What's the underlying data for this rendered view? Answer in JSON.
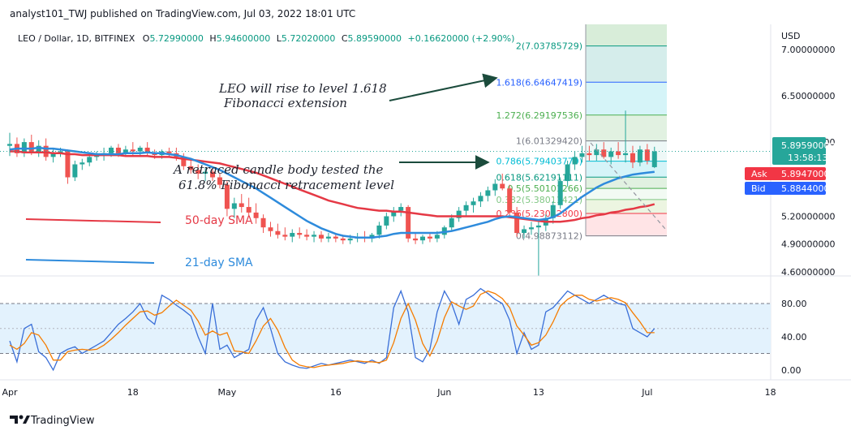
{
  "header": {
    "published": "analyst101_TWJ published on TradingView.com, Jul 03, 2022 18:01 UTC",
    "symbol": "LEO / Dollar, 1D, BITFINEX",
    "o_label": "O",
    "o": "5.72990000",
    "h_label": "H",
    "h": "5.94600000",
    "l_label": "L",
    "l": "5.72020000",
    "c_label": "C",
    "c": "5.89590000",
    "change": "+0.16620000 (+2.90%)"
  },
  "price_axis": {
    "currency": "USD",
    "ticks": [
      "7.00000000",
      "6.50000000",
      "6.00000000",
      "5.20000000",
      "4.90000000",
      "4.60000000"
    ],
    "tick_values": [
      7.0,
      6.5,
      6.0,
      5.2,
      4.9,
      4.6
    ],
    "last_price": "5.89590000",
    "countdown": "13:58:13",
    "ask_label": "Ask",
    "ask": "5.89470000",
    "bid_label": "Bid",
    "bid": "5.88440000"
  },
  "osc_axis": {
    "ticks": [
      "80.00",
      "40.00",
      "0.00"
    ],
    "tick_values": [
      80,
      40,
      0
    ]
  },
  "time_axis": {
    "labels": [
      "Apr",
      "18",
      "May",
      "16",
      "Jun",
      "13",
      "Jul",
      "18"
    ],
    "day_index": [
      0,
      17,
      30,
      45,
      60,
      73,
      88,
      105
    ]
  },
  "fib_levels": [
    {
      "label": "2(7.03785729)",
      "value": 7.03785729,
      "color": "#089981"
    },
    {
      "label": "1.618(6.64647419)",
      "value": 6.64647419,
      "color": "#2962ff"
    },
    {
      "label": "1.272(6.29197536)",
      "value": 6.29197536,
      "color": "#4caf50"
    },
    {
      "label": "1(6.01329420)",
      "value": 6.0132942,
      "color": "#787b86"
    },
    {
      "label": "0.786(5.79403779)",
      "value": 5.79403779,
      "color": "#00bcd4"
    },
    {
      "label": "0.618(5.62191111)",
      "value": 5.62191111,
      "color": "#089981"
    },
    {
      "label": "0.5(5.50101266)",
      "value": 5.50101266,
      "color": "#4caf50"
    },
    {
      "label": "0.382(5.38011421)",
      "value": 5.38011421,
      "color": "#81c784"
    },
    {
      "label": "0.236(5.23052800)",
      "value": 5.230528,
      "color": "#f23645"
    },
    {
      "label": "0(4.98873112)",
      "value": 4.98873112,
      "color": "#787b86"
    }
  ],
  "annotations": {
    "fib_ext_line1": "LEO will rise to level 1.618",
    "fib_ext_line2": "Fibonacci extension",
    "retrace_line1": "A retraced candle body tested the",
    "retrace_line2": "61.8% Fibonacci retracement level",
    "sma50": "50-day SMA",
    "sma21": "21-day SMA"
  },
  "colors": {
    "up": "#26a69a",
    "down": "#ef5350",
    "sma50": "#e53945",
    "sma21": "#2e8bdc",
    "stoch_k": "#3a6fd8",
    "stoch_d": "#f57c00",
    "osc_band": "#e3f2fd"
  },
  "brand": {
    "name": "TradingView"
  },
  "chart_data": {
    "type": "candlestick",
    "title": "LEO / Dollar, 1D, BITFINEX",
    "x_start": "2022-04-01",
    "ylabel": "USD",
    "ylim": [
      4.45,
      7.3
    ],
    "candles": [
      [
        5.96,
        6.1,
        5.85,
        5.98
      ],
      [
        5.98,
        6.05,
        5.84,
        5.88
      ],
      [
        5.88,
        6.04,
        5.84,
        6.0
      ],
      [
        6.0,
        6.08,
        5.86,
        5.9
      ],
      [
        5.9,
        6.02,
        5.84,
        5.96
      ],
      [
        5.96,
        6.04,
        5.8,
        5.84
      ],
      [
        5.84,
        5.92,
        5.78,
        5.88
      ],
      [
        5.88,
        5.94,
        5.84,
        5.9
      ],
      [
        5.9,
        5.92,
        5.55,
        5.62
      ],
      [
        5.62,
        5.8,
        5.58,
        5.76
      ],
      [
        5.76,
        5.82,
        5.7,
        5.78
      ],
      [
        5.78,
        5.86,
        5.74,
        5.84
      ],
      [
        5.84,
        5.9,
        5.8,
        5.86
      ],
      [
        5.86,
        5.94,
        5.8,
        5.88
      ],
      [
        5.88,
        5.96,
        5.84,
        5.94
      ],
      [
        5.94,
        5.98,
        5.84,
        5.88
      ],
      [
        5.88,
        5.96,
        5.84,
        5.92
      ],
      [
        5.92,
        6.0,
        5.86,
        5.9
      ],
      [
        5.9,
        5.96,
        5.85,
        5.94
      ],
      [
        5.94,
        6.0,
        5.86,
        5.88
      ],
      [
        5.88,
        5.92,
        5.82,
        5.86
      ],
      [
        5.86,
        5.92,
        5.82,
        5.9
      ],
      [
        5.9,
        5.94,
        5.84,
        5.88
      ],
      [
        5.88,
        5.94,
        5.8,
        5.84
      ],
      [
        5.84,
        5.88,
        5.7,
        5.74
      ],
      [
        5.74,
        5.8,
        5.66,
        5.7
      ],
      [
        5.7,
        5.76,
        5.6,
        5.66
      ],
      [
        5.66,
        5.72,
        5.58,
        5.68
      ],
      [
        5.68,
        5.72,
        5.58,
        5.62
      ],
      [
        5.62,
        5.66,
        5.5,
        5.54
      ],
      [
        5.54,
        5.58,
        5.2,
        5.28
      ],
      [
        5.28,
        5.4,
        5.18,
        5.34
      ],
      [
        5.34,
        5.44,
        5.24,
        5.3
      ],
      [
        5.3,
        5.4,
        5.2,
        5.24
      ],
      [
        5.24,
        5.34,
        5.12,
        5.18
      ],
      [
        5.18,
        5.22,
        5.02,
        5.08
      ],
      [
        5.08,
        5.14,
        4.98,
        5.04
      ],
      [
        5.04,
        5.12,
        4.96,
        5.0
      ],
      [
        5.0,
        5.08,
        4.94,
        4.98
      ],
      [
        4.98,
        5.06,
        4.92,
        5.02
      ],
      [
        5.02,
        5.08,
        4.96,
        5.0
      ],
      [
        5.0,
        5.06,
        4.94,
        4.98
      ],
      [
        4.98,
        5.04,
        4.92,
        5.0
      ],
      [
        5.0,
        5.04,
        4.92,
        4.96
      ],
      [
        4.96,
        5.02,
        4.92,
        4.98
      ],
      [
        4.98,
        5.02,
        4.92,
        4.96
      ],
      [
        4.96,
        5.0,
        4.9,
        4.94
      ],
      [
        4.94,
        5.0,
        4.9,
        4.96
      ],
      [
        4.96,
        5.02,
        4.92,
        4.98
      ],
      [
        4.98,
        5.04,
        4.92,
        4.96
      ],
      [
        4.96,
        5.02,
        4.92,
        5.0
      ],
      [
        5.0,
        5.14,
        4.96,
        5.1
      ],
      [
        5.1,
        5.24,
        5.06,
        5.2
      ],
      [
        5.2,
        5.3,
        5.14,
        5.26
      ],
      [
        5.26,
        5.34,
        5.2,
        5.3
      ],
      [
        5.3,
        5.32,
        4.92,
        4.96
      ],
      [
        4.96,
        5.02,
        4.9,
        4.94
      ],
      [
        4.94,
        5.0,
        4.9,
        4.98
      ],
      [
        4.98,
        5.02,
        4.92,
        4.96
      ],
      [
        4.96,
        5.04,
        4.92,
        5.0
      ],
      [
        5.0,
        5.1,
        4.96,
        5.08
      ],
      [
        5.08,
        5.22,
        5.04,
        5.18
      ],
      [
        5.18,
        5.3,
        5.14,
        5.26
      ],
      [
        5.26,
        5.36,
        5.2,
        5.32
      ],
      [
        5.32,
        5.4,
        5.24,
        5.36
      ],
      [
        5.36,
        5.46,
        5.3,
        5.42
      ],
      [
        5.42,
        5.52,
        5.36,
        5.48
      ],
      [
        5.48,
        5.6,
        5.42,
        5.55
      ],
      [
        5.55,
        5.66,
        5.48,
        5.5
      ],
      [
        5.5,
        5.54,
        5.2,
        5.24
      ],
      [
        5.24,
        5.3,
        4.98,
        5.02
      ],
      [
        5.02,
        5.1,
        4.96,
        5.06
      ],
      [
        5.06,
        5.14,
        5.0,
        5.08
      ],
      [
        5.08,
        5.16,
        4.56,
        5.1
      ],
      [
        5.1,
        5.22,
        5.04,
        5.18
      ],
      [
        5.18,
        5.36,
        5.12,
        5.32
      ],
      [
        5.32,
        5.62,
        5.28,
        5.58
      ],
      [
        5.58,
        5.8,
        5.52,
        5.76
      ],
      [
        5.76,
        5.9,
        5.7,
        5.84
      ],
      [
        5.84,
        5.96,
        5.78,
        5.88
      ],
      [
        5.88,
        5.96,
        5.8,
        5.86
      ],
      [
        5.86,
        5.98,
        5.8,
        5.92
      ],
      [
        5.92,
        6.0,
        5.82,
        5.84
      ],
      [
        5.84,
        5.94,
        5.76,
        5.9
      ],
      [
        5.9,
        6.0,
        5.82,
        5.86
      ],
      [
        5.86,
        6.34,
        5.78,
        5.88
      ],
      [
        5.88,
        5.96,
        5.72,
        5.78
      ],
      [
        5.78,
        5.96,
        5.74,
        5.92
      ],
      [
        5.92,
        5.98,
        5.76,
        5.8
      ],
      [
        5.73,
        5.95,
        5.72,
        5.9
      ]
    ],
    "sma50": [
      5.9,
      5.9,
      5.89,
      5.89,
      5.89,
      5.89,
      5.88,
      5.88,
      5.87,
      5.87,
      5.86,
      5.86,
      5.86,
      5.86,
      5.86,
      5.86,
      5.85,
      5.85,
      5.85,
      5.85,
      5.84,
      5.84,
      5.84,
      5.83,
      5.82,
      5.81,
      5.8,
      5.79,
      5.78,
      5.77,
      5.75,
      5.73,
      5.71,
      5.69,
      5.67,
      5.64,
      5.61,
      5.58,
      5.55,
      5.52,
      5.49,
      5.46,
      5.43,
      5.4,
      5.37,
      5.35,
      5.33,
      5.31,
      5.29,
      5.28,
      5.27,
      5.26,
      5.26,
      5.25,
      5.25,
      5.24,
      5.23,
      5.22,
      5.21,
      5.2,
      5.2,
      5.2,
      5.2,
      5.2,
      5.2,
      5.2,
      5.2,
      5.2,
      5.2,
      5.19,
      5.18,
      5.17,
      5.16,
      5.15,
      5.14,
      5.14,
      5.14,
      5.15,
      5.16,
      5.18,
      5.19,
      5.21,
      5.22,
      5.24,
      5.25,
      5.27,
      5.28,
      5.3,
      5.31,
      5.33
    ],
    "sma21": [
      5.92,
      5.93,
      5.93,
      5.93,
      5.94,
      5.93,
      5.93,
      5.92,
      5.91,
      5.9,
      5.89,
      5.88,
      5.87,
      5.87,
      5.87,
      5.87,
      5.88,
      5.88,
      5.88,
      5.89,
      5.88,
      5.88,
      5.87,
      5.86,
      5.84,
      5.82,
      5.79,
      5.76,
      5.73,
      5.7,
      5.66,
      5.62,
      5.58,
      5.54,
      5.5,
      5.45,
      5.4,
      5.35,
      5.3,
      5.25,
      5.2,
      5.15,
      5.11,
      5.07,
      5.04,
      5.01,
      4.99,
      4.98,
      4.97,
      4.97,
      4.97,
      4.98,
      4.99,
      5.01,
      5.02,
      5.02,
      5.02,
      5.02,
      5.02,
      5.02,
      5.03,
      5.04,
      5.06,
      5.08,
      5.1,
      5.12,
      5.14,
      5.17,
      5.19,
      5.2,
      5.19,
      5.18,
      5.17,
      5.16,
      5.17,
      5.19,
      5.23,
      5.29,
      5.35,
      5.41,
      5.46,
      5.51,
      5.55,
      5.58,
      5.61,
      5.63,
      5.65,
      5.66,
      5.67,
      5.68
    ],
    "stoch_k": [
      35,
      10,
      50,
      55,
      22,
      15,
      0,
      20,
      25,
      28,
      20,
      25,
      30,
      35,
      45,
      55,
      62,
      70,
      80,
      62,
      55,
      90,
      85,
      78,
      72,
      65,
      40,
      20,
      80,
      25,
      30,
      15,
      20,
      25,
      60,
      75,
      50,
      20,
      10,
      6,
      3,
      2,
      5,
      8,
      6,
      8,
      10,
      12,
      10,
      8,
      12,
      8,
      15,
      75,
      95,
      70,
      15,
      10,
      25,
      70,
      95,
      80,
      55,
      85,
      90,
      98,
      92,
      85,
      80,
      60,
      20,
      45,
      25,
      30,
      70,
      75,
      85,
      95,
      90,
      85,
      80,
      85,
      90,
      85,
      80,
      78,
      50,
      45,
      40,
      50
    ],
    "stoch_d": [
      30,
      25,
      32,
      45,
      42,
      30,
      12,
      12,
      22,
      24,
      25,
      24,
      25,
      30,
      37,
      45,
      54,
      62,
      70,
      71,
      66,
      69,
      77,
      84,
      78,
      72,
      59,
      42,
      47,
      42,
      45,
      23,
      22,
      20,
      35,
      53,
      62,
      48,
      27,
      12,
      6,
      4,
      3,
      5,
      6,
      7,
      8,
      10,
      11,
      10,
      10,
      9,
      12,
      33,
      62,
      80,
      60,
      32,
      17,
      35,
      63,
      82,
      77,
      73,
      77,
      91,
      95,
      92,
      86,
      75,
      53,
      42,
      30,
      33,
      42,
      58,
      77,
      85,
      90,
      90,
      85,
      83,
      85,
      87,
      85,
      81,
      69,
      58,
      45,
      45
    ]
  }
}
